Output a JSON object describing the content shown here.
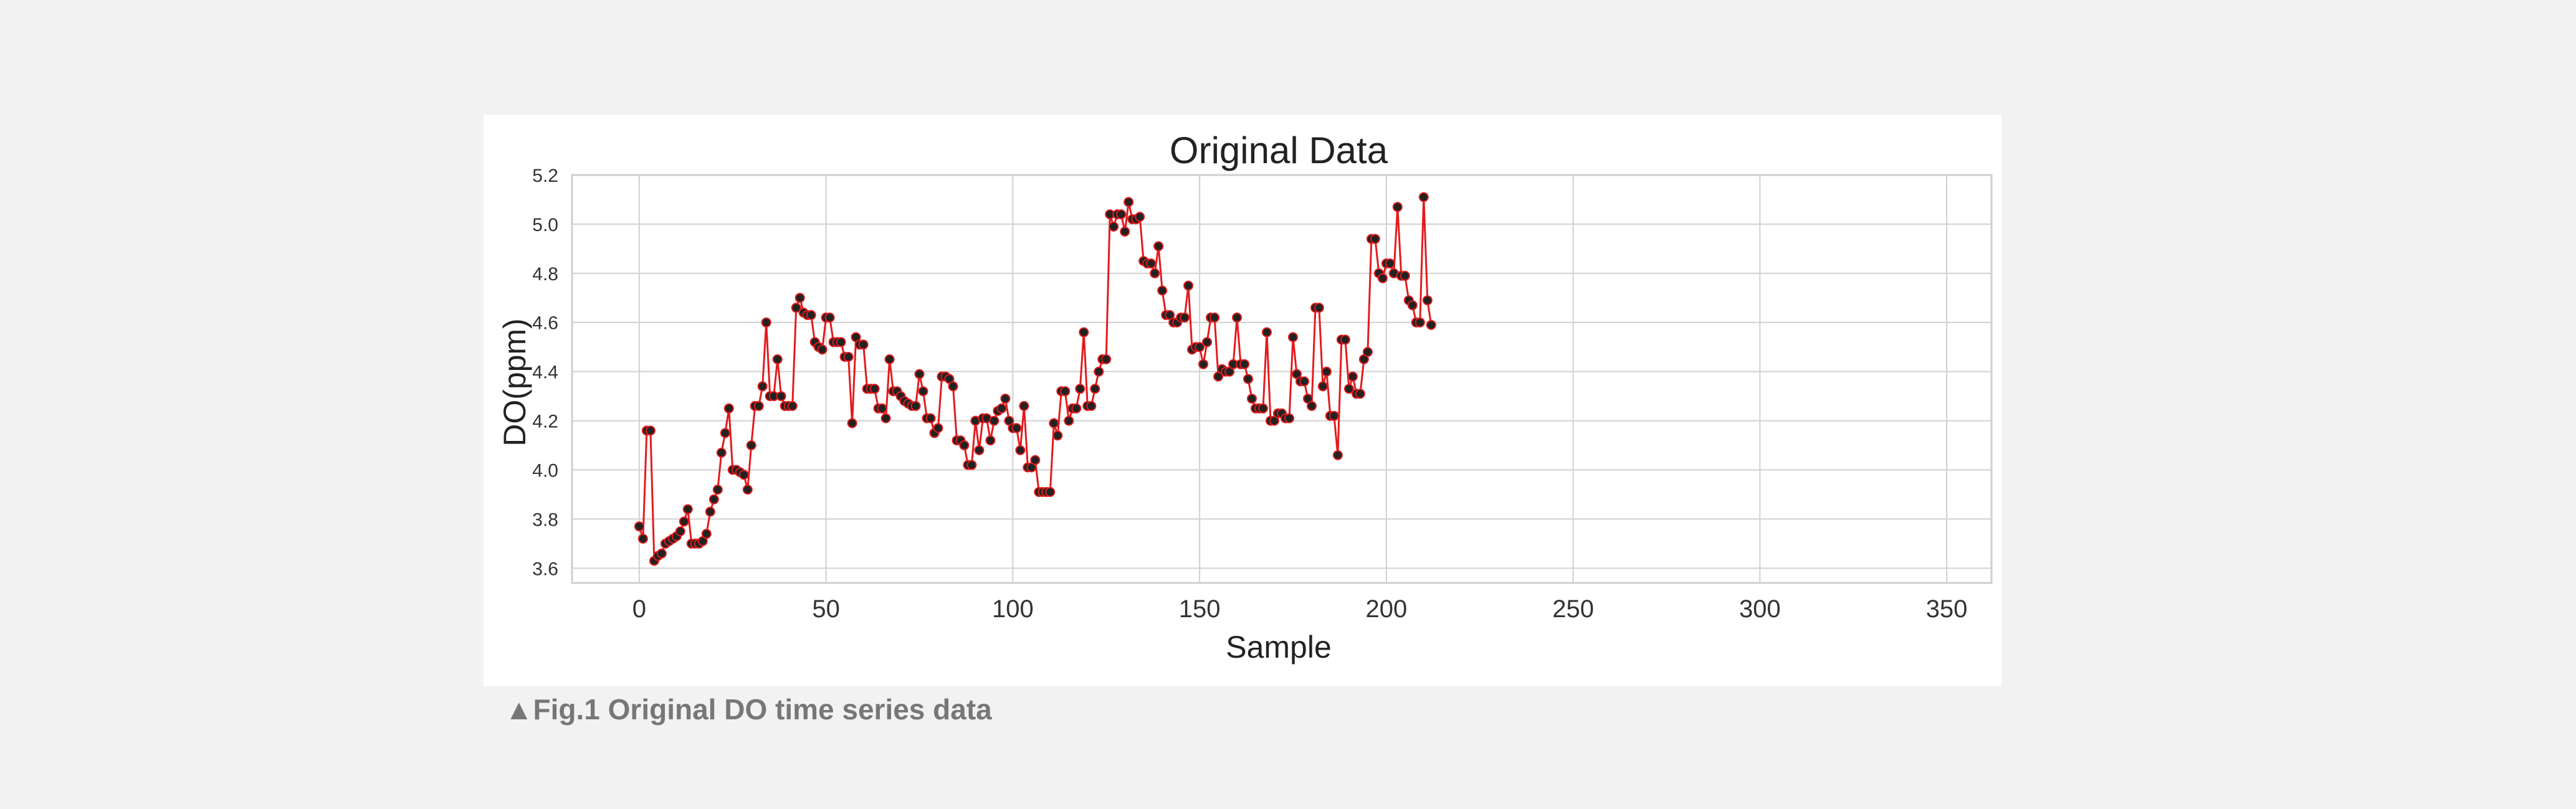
{
  "caption": {
    "marker": "▲",
    "text": "Fig.1 Original DO time series data"
  },
  "colors": {
    "page_background": "#f2f2f2",
    "panel_background": "#ffffff",
    "line": "#e41a1c",
    "marker_fill": "#222222",
    "grid": "#d0d0d0"
  },
  "chart_data": {
    "type": "line",
    "title": "Original Data",
    "xlabel": "Sample",
    "ylabel": "DO(ppm)",
    "xlim": [
      -18,
      362
    ],
    "ylim": [
      3.54,
      5.2
    ],
    "xticks": [
      0,
      50,
      100,
      150,
      200,
      250,
      300,
      350
    ],
    "yticks": [
      3.6,
      3.8,
      4.0,
      4.2,
      4.4,
      4.6,
      4.8,
      5.0,
      5.2
    ],
    "xtick_labels": [
      "0",
      "50",
      "100",
      "150",
      "200",
      "250",
      "300",
      "350"
    ],
    "ytick_labels": [
      "3.6",
      "3.8",
      "4.0",
      "4.2",
      "4.4",
      "4.6",
      "4.8",
      "5.0",
      "5.2"
    ],
    "grid": true,
    "markers": true,
    "series": [
      {
        "values": [
          3.77,
          3.72,
          4.16,
          4.16,
          3.63,
          3.65,
          3.66,
          3.7,
          3.71,
          3.72,
          3.73,
          3.75,
          3.79,
          3.84,
          3.7,
          3.7,
          3.7,
          3.71,
          3.74,
          3.83,
          3.88,
          3.92,
          4.07,
          4.15,
          4.25,
          4.0,
          4.0,
          3.99,
          3.98,
          3.92,
          4.1,
          4.26,
          4.26,
          4.34,
          4.6,
          4.3,
          4.3,
          4.45,
          4.3,
          4.26,
          4.26,
          4.26,
          4.66,
          4.7,
          4.64,
          4.63,
          4.63,
          4.52,
          4.5,
          4.49,
          4.62,
          4.62,
          4.52,
          4.52,
          4.52,
          4.46,
          4.46,
          4.19,
          4.54,
          4.51,
          4.51,
          4.33,
          4.33,
          4.33,
          4.25,
          4.25,
          4.21,
          4.45,
          4.32,
          4.32,
          4.3,
          4.28,
          4.27,
          4.26,
          4.26,
          4.39,
          4.32,
          4.21,
          4.21,
          4.15,
          4.17,
          4.38,
          4.38,
          4.37,
          4.34,
          4.12,
          4.12,
          4.1,
          4.02,
          4.02,
          4.2,
          4.08,
          4.21,
          4.21,
          4.12,
          4.2,
          4.24,
          4.25,
          4.29,
          4.2,
          4.17,
          4.17,
          4.08,
          4.26,
          4.01,
          4.01,
          4.04,
          3.91,
          3.91,
          3.91,
          3.91,
          4.19,
          4.14,
          4.32,
          4.32,
          4.2,
          4.25,
          4.25,
          4.33,
          4.56,
          4.26,
          4.26,
          4.33,
          4.4,
          4.45,
          4.45,
          5.04,
          4.99,
          5.04,
          5.04,
          4.97,
          5.09,
          5.02,
          5.02,
          5.03,
          4.85,
          4.84,
          4.84,
          4.8,
          4.91,
          4.73,
          4.63,
          4.63,
          4.6,
          4.6,
          4.62,
          4.62,
          4.75,
          4.49,
          4.5,
          4.5,
          4.43,
          4.52,
          4.62,
          4.62,
          4.38,
          4.41,
          4.4,
          4.4,
          4.43,
          4.62,
          4.43,
          4.43,
          4.37,
          4.29,
          4.25,
          4.25,
          4.25,
          4.56,
          4.2,
          4.2,
          4.23,
          4.23,
          4.21,
          4.21,
          4.54,
          4.39,
          4.36,
          4.36,
          4.29,
          4.26,
          4.66,
          4.66,
          4.34,
          4.4,
          4.22,
          4.22,
          4.06,
          4.53,
          4.53,
          4.33,
          4.38,
          4.31,
          4.31,
          4.45,
          4.48,
          4.94,
          4.94,
          4.8,
          4.78,
          4.84,
          4.84,
          4.8,
          5.07,
          4.79,
          4.79,
          4.69,
          4.67,
          4.6,
          4.6,
          5.11,
          4.69,
          4.59
        ]
      }
    ]
  }
}
